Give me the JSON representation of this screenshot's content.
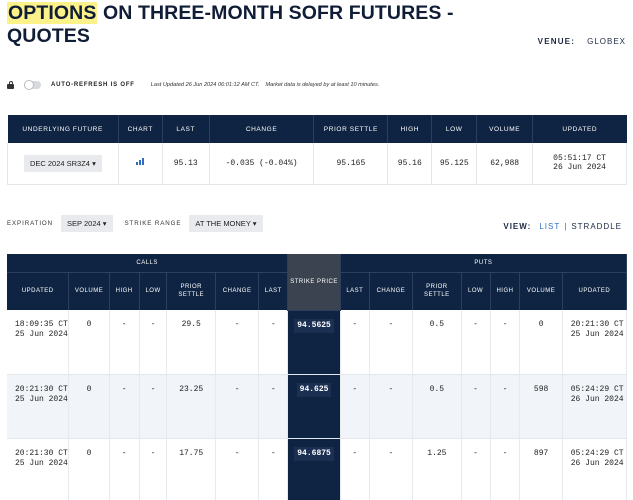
{
  "page": {
    "title_highlight": "OPTIONS",
    "title_rest": " ON THREE-MONTH SOFR FUTURES - QUOTES",
    "venue_label": "VENUE:",
    "venue_value": "GLOBEX"
  },
  "refresh": {
    "label": "AUTO-REFRESH IS OFF",
    "last_updated": "Last Updated 26 Jun 2024 06:01:12 AM CT.",
    "delay_note": "Market data is delayed by at least 10 minutes."
  },
  "underlying": {
    "headers": [
      "UNDERLYING FUTURE",
      "CHART",
      "LAST",
      "CHANGE",
      "PRIOR SETTLE",
      "HIGH",
      "LOW",
      "VOLUME",
      "UPDATED"
    ],
    "contract": "DEC 2024 SR3Z4",
    "last": "95.13",
    "change": "-0.035 (-0.04%)",
    "prior_settle": "95.165",
    "high": "95.16",
    "low": "95.125",
    "volume": "62,988",
    "updated_time": "05:51:17 CT",
    "updated_date": "26 Jun 2024",
    "change_color": "#d3161c"
  },
  "filters": {
    "expiration_label": "EXPIRATION",
    "expiration_value": "SEP 2024",
    "strike_range_label": "STRIKE RANGE",
    "strike_range_value": "AT THE MONEY"
  },
  "view": {
    "label": "VIEW:",
    "list": "LIST",
    "separator": "|",
    "straddle": "STRADDLE"
  },
  "options": {
    "calls_label": "CALLS",
    "puts_label": "PUTS",
    "strike_label": "STRIKE PRICE",
    "call_headers": [
      "UPDATED",
      "VOLUME",
      "HIGH",
      "LOW",
      "PRIOR SETTLE",
      "CHANGE",
      "LAST"
    ],
    "put_headers": [
      "LAST",
      "CHANGE",
      "PRIOR SETTLE",
      "LOW",
      "HIGH",
      "VOLUME",
      "UPDATED"
    ],
    "rows": [
      {
        "c_updated": "18:09:35 CT 25 Jun 2024",
        "c_volume": "0",
        "c_high": "-",
        "c_low": "-",
        "c_prior": "29.5",
        "c_change": "-",
        "c_last": "-",
        "strike": "94.5625",
        "p_last": "-",
        "p_change": "-",
        "p_prior": "0.5",
        "p_low": "-",
        "p_high": "-",
        "p_volume": "0",
        "p_updated": "20:21:30 CT 25 Jun 2024"
      },
      {
        "c_updated": "20:21:30 CT 25 Jun 2024",
        "c_volume": "0",
        "c_high": "-",
        "c_low": "-",
        "c_prior": "23.25",
        "c_change": "-",
        "c_last": "-",
        "strike": "94.625",
        "p_last": "-",
        "p_change": "-",
        "p_prior": "0.5",
        "p_low": "-",
        "p_high": "-",
        "p_volume": "598",
        "p_updated": "05:24:29 CT 26 Jun 2024"
      },
      {
        "c_updated": "20:21:30 CT 25 Jun 2024",
        "c_volume": "0",
        "c_high": "-",
        "c_low": "-",
        "c_prior": "17.75",
        "c_change": "-",
        "c_last": "-",
        "strike": "94.6875",
        "p_last": "-",
        "p_change": "-",
        "p_prior": "1.25",
        "p_low": "-",
        "p_high": "-",
        "p_volume": "897",
        "p_updated": "05:24:29 CT 26 Jun 2024"
      }
    ]
  },
  "colors": {
    "header_navy": "#0f2442",
    "link_blue": "#2f6ec5",
    "highlight_yellow": "#fbf28a",
    "negative_red": "#d3161c"
  }
}
